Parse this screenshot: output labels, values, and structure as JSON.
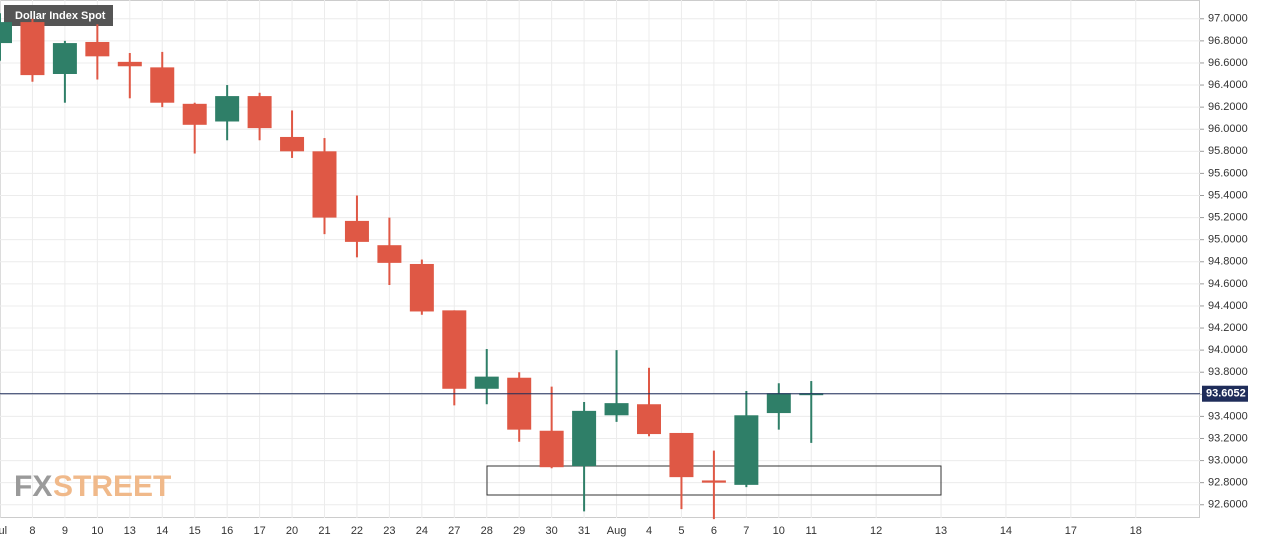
{
  "chart_data": {
    "type": "candlestick",
    "title": "Dollar Index Spot",
    "watermark": [
      "FX",
      "STREET"
    ],
    "categories": [
      "Jul",
      "8",
      "9",
      "10",
      "13",
      "14",
      "15",
      "16",
      "17",
      "20",
      "21",
      "22",
      "23",
      "24",
      "27",
      "28",
      "29",
      "30",
      "31",
      "Aug",
      "4",
      "5",
      "6",
      "7",
      "10",
      "11",
      null,
      "12",
      null,
      "13",
      null,
      "14",
      null,
      "17",
      null,
      "18"
    ],
    "open": [
      96.78,
      96.97,
      96.5,
      96.79,
      96.61,
      96.56,
      96.23,
      96.07,
      96.3,
      95.93,
      95.8,
      95.17,
      94.95,
      94.78,
      94.36,
      93.65,
      93.75,
      93.27,
      92.95,
      93.41,
      93.51,
      93.25,
      92.82,
      92.78,
      93.43,
      93.6,
      null,
      null,
      null,
      null,
      null,
      null,
      null,
      null,
      null,
      null
    ],
    "high": [
      97.05,
      97.0,
      96.8,
      96.95,
      96.69,
      96.7,
      96.24,
      96.4,
      96.33,
      96.17,
      95.92,
      95.4,
      95.2,
      94.82,
      94.36,
      94.01,
      93.8,
      93.67,
      93.53,
      94.0,
      93.84,
      93.25,
      93.09,
      93.63,
      93.7,
      93.72,
      null,
      null,
      null,
      null,
      null,
      null,
      null,
      null,
      null,
      null
    ],
    "low": [
      96.62,
      96.43,
      96.24,
      96.45,
      96.28,
      96.2,
      95.78,
      95.9,
      95.9,
      95.74,
      95.05,
      94.84,
      94.59,
      94.32,
      93.5,
      93.51,
      93.17,
      92.93,
      92.54,
      93.35,
      93.22,
      92.56,
      92.47,
      92.76,
      93.28,
      93.16,
      null,
      null,
      null,
      null,
      null,
      null,
      null,
      null,
      null,
      null
    ],
    "close": [
      96.97,
      96.49,
      96.78,
      96.66,
      96.57,
      96.24,
      96.04,
      96.3,
      96.01,
      95.8,
      95.2,
      94.98,
      94.79,
      94.35,
      93.65,
      93.76,
      93.28,
      92.94,
      93.45,
      93.52,
      93.24,
      92.85,
      92.8,
      93.41,
      93.61,
      93.61,
      null,
      null,
      null,
      null,
      null,
      null,
      null,
      null,
      null,
      null
    ],
    "up_color": "#2f7f68",
    "down_color": "#df5845",
    "last_price": 93.6052,
    "ylim": [
      92.48,
      97.17
    ],
    "yticks": [
      {
        "value": 92.6,
        "label": "92.6000"
      },
      {
        "value": 92.8,
        "label": "92.8000"
      },
      {
        "value": 93.0,
        "label": "93.0000"
      },
      {
        "value": 93.2,
        "label": "93.2000"
      },
      {
        "value": 93.4,
        "label": "93.4000"
      },
      {
        "value": 93.6,
        "label": "93.6000"
      },
      {
        "value": 93.8,
        "label": "93.8000"
      },
      {
        "value": 94.0,
        "label": "94.0000"
      },
      {
        "value": 94.2,
        "label": "94.2000"
      },
      {
        "value": 94.4,
        "label": "94.4000"
      },
      {
        "value": 94.6,
        "label": "94.6000"
      },
      {
        "value": 94.8,
        "label": "94.8000"
      },
      {
        "value": 95.0,
        "label": "95.0000"
      },
      {
        "value": 95.2,
        "label": "95.2000"
      },
      {
        "value": 95.4,
        "label": "95.4000"
      },
      {
        "value": 95.6,
        "label": "95.6000"
      },
      {
        "value": 95.8,
        "label": "95.8000"
      },
      {
        "value": 96.0,
        "label": "96.0000"
      },
      {
        "value": 96.2,
        "label": "96.2000"
      },
      {
        "value": 96.4,
        "label": "96.4000"
      },
      {
        "value": 96.6,
        "label": "96.6000"
      },
      {
        "value": 96.8,
        "label": "96.8000"
      },
      {
        "value": 97.0,
        "label": "97.0000"
      }
    ],
    "grid": true
  }
}
